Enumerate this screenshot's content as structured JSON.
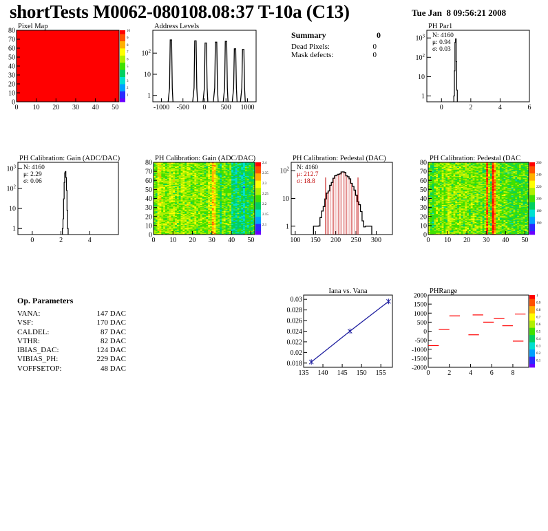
{
  "header": {
    "title": "shortTests M0062-080108.08:37 T-10a (C13)",
    "date": "Tue Jan  8 09:56:21 2008"
  },
  "summary": {
    "title": "Summary",
    "title_value": "0",
    "rows": [
      {
        "label": "Dead Pixels:",
        "value": "0"
      },
      {
        "label": "Mask defects:",
        "value": "0"
      }
    ]
  },
  "op_params": {
    "title": "Op. Parameters",
    "rows": [
      {
        "label": "VANA:",
        "value": "147 DAC"
      },
      {
        "label": "VSF:",
        "value": "170 DAC"
      },
      {
        "label": "CALDEL:",
        "value": "87 DAC"
      },
      {
        "label": "VTHR:",
        "value": "82 DAC"
      },
      {
        "label": "IBIAS_DAC:",
        "value": "124 DAC"
      },
      {
        "label": "VIBIAS_PH:",
        "value": "229 DAC"
      },
      {
        "label": "VOFFSETOP:",
        "value": "48 DAC"
      }
    ]
  },
  "colors": {
    "palette": [
      "#6a00ff",
      "#2a2aff",
      "#00a0ff",
      "#00e0d0",
      "#00d060",
      "#40e000",
      "#b0f000",
      "#ffff00",
      "#ffb000",
      "#ff5000",
      "#ff0000"
    ],
    "data_line": "#000000",
    "pedestal_fill": "#c00000",
    "fit_line": "#2020a0"
  },
  "chart_data": [
    {
      "id": "pixel_map",
      "type": "heatmap",
      "title": "Pixel Map",
      "xlim": [
        0,
        52
      ],
      "ylim": [
        0,
        80
      ],
      "xticks": [
        "0",
        "10",
        "20",
        "30",
        "40",
        "50"
      ],
      "yticks": [
        "0",
        "10",
        "20",
        "30",
        "40",
        "50",
        "60",
        "70",
        "80"
      ],
      "uniform_value": 10,
      "colorbar_labels": [
        "1",
        "2",
        "3",
        "4",
        "5",
        "6",
        "7",
        "8",
        "9",
        "10"
      ]
    },
    {
      "id": "address_levels",
      "type": "bar",
      "title": "Address Levels",
      "yscale": "log",
      "xlim": [
        -1200,
        1200
      ],
      "ylim": [
        0.5,
        1200
      ],
      "xticks": [
        "-1000",
        "-500",
        "0",
        "500",
        "1000"
      ],
      "yticks": [
        "1",
        "10",
        "10^2"
      ],
      "peaks": [
        {
          "x": -780,
          "y": 420
        },
        {
          "x": -210,
          "y": 380
        },
        {
          "x": 30,
          "y": 300
        },
        {
          "x": 270,
          "y": 330
        },
        {
          "x": 500,
          "y": 360
        },
        {
          "x": 710,
          "y": 160
        },
        {
          "x": 900,
          "y": 150
        }
      ]
    },
    {
      "id": "ph_par1",
      "type": "bar",
      "title": "PH Par1",
      "yscale": "log",
      "xlim": [
        -1,
        6
      ],
      "ylim": [
        0.5,
        2500
      ],
      "xticks": [
        "0",
        "2",
        "4",
        "6"
      ],
      "yticks": [
        "1",
        "10",
        "10^2",
        "10^3"
      ],
      "stats": [
        {
          "k": "N:",
          "v": "4160"
        },
        {
          "k": "μ:",
          "v": "0.94"
        },
        {
          "k": "σ:",
          "v": "0.03"
        }
      ],
      "bins": [
        [
          0.84,
          1
        ],
        [
          0.88,
          20
        ],
        [
          0.92,
          600
        ],
        [
          0.96,
          900
        ],
        [
          1.0,
          60
        ],
        [
          1.04,
          2
        ]
      ]
    },
    {
      "id": "ph_gain_hist",
      "type": "bar",
      "title": "PH Calibration: Gain (ADC/DAC)",
      "yscale": "log",
      "xlim": [
        -1,
        6
      ],
      "ylim": [
        0.5,
        2000
      ],
      "xticks": [
        "0",
        "2",
        "4"
      ],
      "yticks": [
        "1",
        "10",
        "10^2",
        "10^3"
      ],
      "stats": [
        {
          "k": "N:",
          "v": "4160"
        },
        {
          "k": "μ:",
          "v": "2.29"
        },
        {
          "k": "σ:",
          "v": "0.06"
        }
      ],
      "bins": [
        [
          2.1,
          1
        ],
        [
          2.14,
          3
        ],
        [
          2.18,
          30
        ],
        [
          2.22,
          200
        ],
        [
          2.26,
          600
        ],
        [
          2.3,
          700
        ],
        [
          2.34,
          350
        ],
        [
          2.38,
          80
        ],
        [
          2.42,
          8
        ],
        [
          2.46,
          1
        ]
      ]
    },
    {
      "id": "ph_gain_map",
      "type": "heatmap",
      "title": "PH Calibration: Gain (ADC/DAC)",
      "xlim": [
        0,
        52
      ],
      "ylim": [
        0,
        80
      ],
      "xticks": [
        "0",
        "10",
        "20",
        "30",
        "40",
        "50"
      ],
      "yticks": [
        "0",
        "10",
        "20",
        "30",
        "40",
        "50",
        "60",
        "70",
        "80"
      ],
      "value_range": [
        2.05,
        2.45
      ],
      "colorbar_labels": [
        "2.1",
        "2.15",
        "2.2",
        "2.25",
        "2.3",
        "2.35",
        "2.4"
      ],
      "column_means": [
        2.26,
        2.27,
        2.32,
        2.31,
        2.28,
        2.29,
        2.27,
        2.28,
        2.3,
        2.28,
        2.29,
        2.27,
        2.28,
        2.26,
        2.29,
        2.3,
        2.27,
        2.29,
        2.28,
        2.27,
        2.28,
        2.29,
        2.27,
        2.26,
        2.28,
        2.27,
        2.26,
        2.27,
        2.3,
        2.28,
        2.36,
        2.34,
        2.27,
        2.26,
        2.22,
        2.26,
        2.27,
        2.25,
        2.26,
        2.27,
        2.2,
        2.21,
        2.19,
        2.22,
        2.21,
        2.2,
        2.18,
        2.23,
        2.22,
        2.23,
        2.22,
        2.25
      ]
    },
    {
      "id": "ph_pedestal_hist",
      "type": "bar",
      "title": "PH Calibration: Pedestal (DAC)",
      "yscale": "log",
      "xlim": [
        90,
        340
      ],
      "ylim": [
        0.5,
        200
      ],
      "xticks": [
        "100",
        "150",
        "200",
        "250",
        "300"
      ],
      "yticks": [
        "1",
        "10",
        "10^2"
      ],
      "stats": [
        {
          "k": "N:",
          "v": "4160"
        },
        {
          "k": "μ:",
          "v": "212.7"
        },
        {
          "k": "σ:",
          "v": "18.8"
        }
      ],
      "fit_range": [
        175,
        255
      ],
      "gauss": {
        "mean": 212.7,
        "sigma": 18.8,
        "peak": 85,
        "min_x": 145,
        "max_x": 285
      }
    },
    {
      "id": "ph_pedestal_map",
      "type": "heatmap",
      "title": "PH Calibration: Pedestal (DAC",
      "xlim": [
        0,
        52
      ],
      "ylim": [
        0,
        80
      ],
      "xticks": [
        "0",
        "10",
        "20",
        "30",
        "40",
        "50"
      ],
      "yticks": [
        "0",
        "10",
        "20",
        "30",
        "40",
        "50",
        "60",
        "70",
        "80"
      ],
      "value_range": [
        150,
        260
      ],
      "colorbar_labels": [
        "160",
        "180",
        "200",
        "220",
        "240",
        "260"
      ],
      "column_means": [
        212,
        205,
        200,
        207,
        213,
        210,
        209,
        215,
        206,
        210,
        218,
        214,
        211,
        212,
        209,
        207,
        213,
        210,
        212,
        215,
        211,
        208,
        210,
        212,
        209,
        210,
        208,
        212,
        206,
        210,
        250,
        212,
        208,
        260,
        240,
        211,
        212,
        207,
        205,
        209,
        210,
        205,
        202,
        204,
        206,
        203,
        205,
        207,
        204,
        206,
        203,
        205
      ]
    },
    {
      "id": "iana_vana",
      "type": "line",
      "title": "Iana vs. Vana",
      "xlim": [
        135,
        158
      ],
      "ylim": [
        0.0172,
        0.0308
      ],
      "xticks": [
        "135",
        "140",
        "145",
        "150",
        "155"
      ],
      "yticks": [
        "0.018",
        "0.02",
        "0.022",
        "0.024",
        "0.026",
        "0.028",
        "0.03"
      ],
      "x": [
        137,
        147,
        157
      ],
      "y": [
        0.0182,
        0.024,
        0.0296
      ]
    },
    {
      "id": "ph_range",
      "type": "scatter",
      "title": "PHRange",
      "xlim": [
        0,
        9.5
      ],
      "ylim": [
        -2000,
        2000
      ],
      "xticks": [
        "0",
        "2",
        "4",
        "6",
        "8"
      ],
      "yticks": [
        "2000",
        "1500",
        "1000",
        "500",
        "0",
        "-500",
        "-1000",
        "-1500",
        "-2000"
      ],
      "segments": [
        [
          0,
          -800
        ],
        [
          1,
          100
        ],
        [
          2,
          850
        ],
        [
          3.8,
          -200
        ],
        [
          4.2,
          900
        ],
        [
          5.2,
          500
        ],
        [
          6.2,
          700
        ],
        [
          7,
          300
        ],
        [
          8,
          -550
        ],
        [
          8.2,
          950
        ]
      ],
      "colorbar_labels": [
        "0.1",
        "0.2",
        "0.3",
        "0.4",
        "0.5",
        "0.6",
        "0.7",
        "0.8",
        "0.9",
        "1"
      ]
    }
  ]
}
